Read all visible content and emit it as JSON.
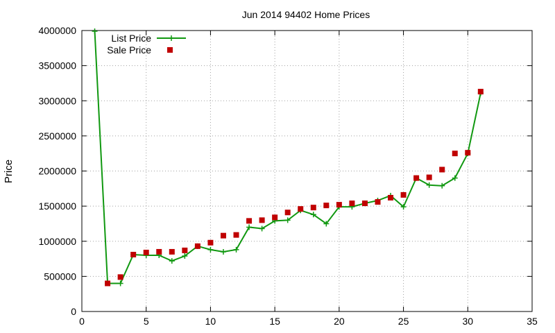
{
  "chart_data": {
    "type": "line",
    "title": "Jun 2014 94402 Home Prices",
    "xlabel": "",
    "ylabel": "Price",
    "xlim": [
      0,
      35
    ],
    "ylim": [
      0,
      4000000
    ],
    "x_ticks": [
      0,
      5,
      10,
      15,
      20,
      25,
      30,
      35
    ],
    "y_ticks": [
      0,
      500000,
      1000000,
      1500000,
      2000000,
      2500000,
      3000000,
      3500000,
      4000000
    ],
    "grid": true,
    "legend_position": "top-left",
    "series": [
      {
        "name": "List Price",
        "style": "line-plus",
        "color": "#109810",
        "points": [
          [
            1,
            3990000
          ],
          [
            2,
            400000
          ],
          [
            3,
            400000
          ],
          [
            4,
            810000
          ],
          [
            5,
            800000
          ],
          [
            6,
            800000
          ],
          [
            7,
            720000
          ],
          [
            8,
            790000
          ],
          [
            9,
            930000
          ],
          [
            10,
            880000
          ],
          [
            11,
            850000
          ],
          [
            12,
            880000
          ],
          [
            13,
            1200000
          ],
          [
            14,
            1180000
          ],
          [
            15,
            1290000
          ],
          [
            16,
            1300000
          ],
          [
            17,
            1440000
          ],
          [
            18,
            1380000
          ],
          [
            19,
            1250000
          ],
          [
            20,
            1490000
          ],
          [
            21,
            1490000
          ],
          [
            22,
            1540000
          ],
          [
            23,
            1580000
          ],
          [
            24,
            1650000
          ],
          [
            25,
            1490000
          ],
          [
            26,
            1900000
          ],
          [
            27,
            1800000
          ],
          [
            28,
            1790000
          ],
          [
            29,
            1900000
          ],
          [
            30,
            2250000
          ],
          [
            31,
            3110000
          ]
        ]
      },
      {
        "name": "Sale Price",
        "style": "square",
        "color": "#c00000",
        "points": [
          [
            2,
            400000
          ],
          [
            3,
            490000
          ],
          [
            4,
            810000
          ],
          [
            5,
            840000
          ],
          [
            6,
            850000
          ],
          [
            7,
            850000
          ],
          [
            8,
            870000
          ],
          [
            9,
            930000
          ],
          [
            10,
            980000
          ],
          [
            11,
            1080000
          ],
          [
            12,
            1090000
          ],
          [
            13,
            1290000
          ],
          [
            14,
            1300000
          ],
          [
            15,
            1340000
          ],
          [
            16,
            1410000
          ],
          [
            17,
            1460000
          ],
          [
            18,
            1480000
          ],
          [
            19,
            1510000
          ],
          [
            20,
            1520000
          ],
          [
            21,
            1540000
          ],
          [
            22,
            1540000
          ],
          [
            23,
            1560000
          ],
          [
            24,
            1620000
          ],
          [
            25,
            1660000
          ],
          [
            26,
            1900000
          ],
          [
            27,
            1910000
          ],
          [
            28,
            2020000
          ],
          [
            29,
            2250000
          ],
          [
            30,
            2260000
          ],
          [
            31,
            3130000
          ]
        ]
      }
    ]
  }
}
